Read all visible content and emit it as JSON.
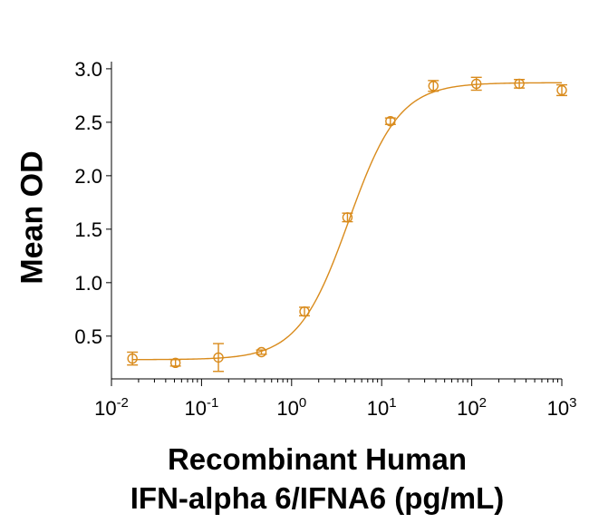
{
  "chart_data": {
    "type": "scatter",
    "title": "",
    "ylabel": "Mean OD",
    "xlabel_line1": "Recombinant Human",
    "xlabel_line2": "IFN-alpha 6/IFNA6 (pg/mL)",
    "x_scale": "log",
    "xlim": [
      0.01,
      1000
    ],
    "ylim": [
      0.1,
      3.05
    ],
    "x_ticks": [
      {
        "value": 0.01,
        "base": "10",
        "exp": "-2"
      },
      {
        "value": 0.1,
        "base": "10",
        "exp": "-1"
      },
      {
        "value": 1,
        "base": "10",
        "exp": "0"
      },
      {
        "value": 10,
        "base": "10",
        "exp": "1"
      },
      {
        "value": 100,
        "base": "10",
        "exp": "2"
      },
      {
        "value": 1000,
        "base": "10",
        "exp": "3"
      }
    ],
    "y_ticks": [
      {
        "value": 0.5,
        "label": "0.5"
      },
      {
        "value": 1.0,
        "label": "1.0"
      },
      {
        "value": 1.5,
        "label": "1.5"
      },
      {
        "value": 2.0,
        "label": "2.0"
      },
      {
        "value": 2.5,
        "label": "2.5"
      },
      {
        "value": 3.0,
        "label": "3.0"
      }
    ],
    "grid": false,
    "color": "#D98B1C",
    "points": [
      {
        "x": 0.0171,
        "y": 0.29,
        "err": 0.06
      },
      {
        "x": 0.0514,
        "y": 0.25,
        "err": 0.03
      },
      {
        "x": 0.154,
        "y": 0.3,
        "err": 0.13
      },
      {
        "x": 0.463,
        "y": 0.35,
        "err": 0.02
      },
      {
        "x": 1.39,
        "y": 0.73,
        "err": 0.04
      },
      {
        "x": 4.17,
        "y": 1.61,
        "err": 0.04
      },
      {
        "x": 12.5,
        "y": 2.51,
        "err": 0.03
      },
      {
        "x": 37.5,
        "y": 2.84,
        "err": 0.05
      },
      {
        "x": 112.5,
        "y": 2.86,
        "err": 0.06
      },
      {
        "x": 337.5,
        "y": 2.86,
        "err": 0.04
      },
      {
        "x": 1000,
        "y": 2.8,
        "err": 0.05
      }
    ],
    "fit": {
      "bottom": 0.28,
      "top": 2.87,
      "ec50": 4.3,
      "hill": 1.55
    }
  }
}
